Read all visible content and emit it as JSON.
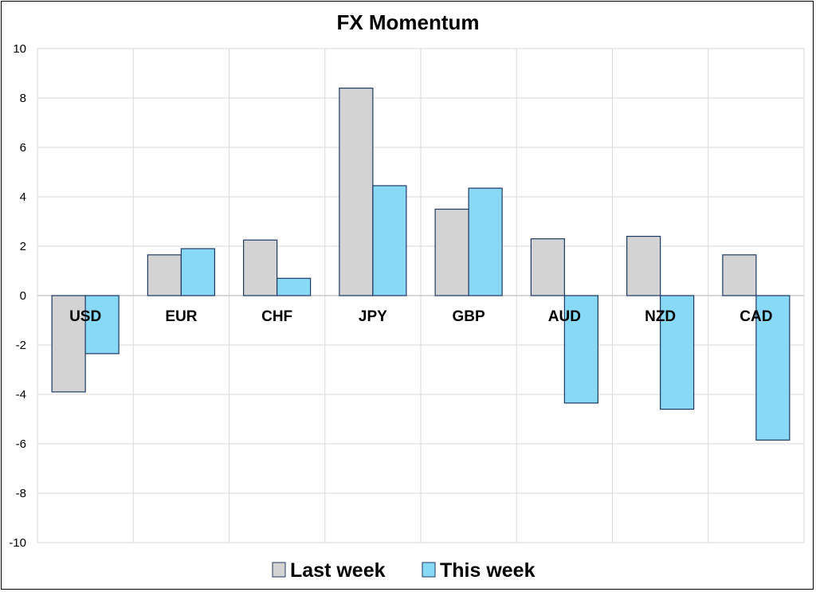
{
  "chart_data": {
    "type": "bar",
    "title": "FX Momentum",
    "xlabel": "",
    "ylabel": "",
    "categories": [
      "USD",
      "EUR",
      "CHF",
      "JPY",
      "GBP",
      "AUD",
      "NZD",
      "CAD"
    ],
    "series": [
      {
        "name": "Last week",
        "values": [
          -3.9,
          1.65,
          2.25,
          8.4,
          3.5,
          2.3,
          2.4,
          1.65
        ],
        "color": "#d3d3d3"
      },
      {
        "name": "This week",
        "values": [
          -2.35,
          1.9,
          0.7,
          4.45,
          4.35,
          -4.35,
          -4.6,
          -5.85
        ],
        "color": "#87d9f5"
      }
    ],
    "ylim": [
      -10,
      10
    ],
    "yticks": [
      "10",
      "8",
      "6",
      "4",
      "2",
      "0",
      "-2",
      "-4",
      "-6",
      "-8",
      "-10"
    ],
    "grid": true,
    "legend_position": "bottom",
    "bar_outline_color": "#1f3864"
  }
}
